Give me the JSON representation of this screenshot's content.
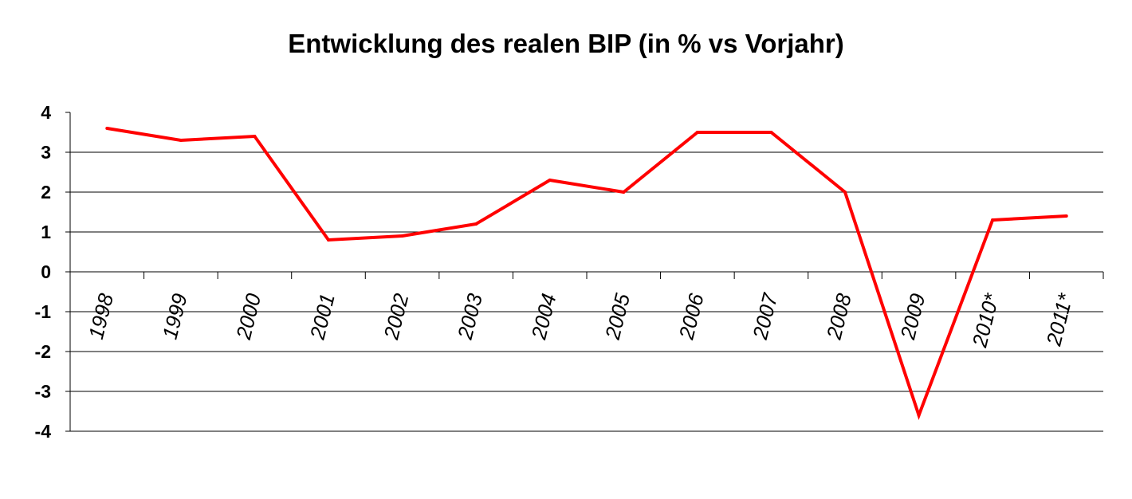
{
  "chart_data": {
    "type": "line",
    "title": "Entwicklung des realen BIP (in % vs Vorjahr)",
    "xlabel": "",
    "ylabel": "",
    "categories": [
      "1998",
      "1999",
      "2000",
      "2001",
      "2002",
      "2003",
      "2004",
      "2005",
      "2006",
      "2007",
      "2008",
      "2009",
      "2010*",
      "2011*"
    ],
    "series": [
      {
        "values": [
          3.6,
          3.3,
          3.4,
          0.8,
          0.9,
          1.2,
          2.3,
          2.0,
          3.5,
          3.5,
          2.0,
          -3.6,
          1.3,
          1.4
        ],
        "color": "#ff0000"
      }
    ],
    "ylim": [
      -4,
      4
    ],
    "yticks": [
      "4",
      "3",
      "2",
      "1",
      "0",
      "-1",
      "-2",
      "-3",
      "-4"
    ],
    "ytick_values": [
      4,
      3,
      2,
      1,
      0,
      -1,
      -2,
      -3,
      -4
    ],
    "grid": true,
    "legend": "none"
  }
}
